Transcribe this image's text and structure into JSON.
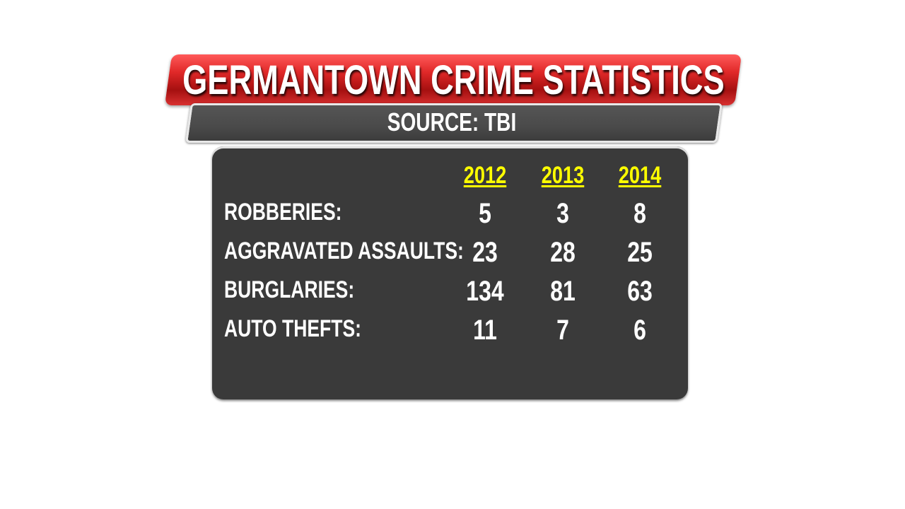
{
  "chart_data": {
    "type": "table",
    "title": "GERMANTOWN CRIME STATISTICS",
    "subtitle": "SOURCE: TBI",
    "columns": [
      "2012",
      "2013",
      "2014"
    ],
    "rows": [
      {
        "label": "ROBBERIES:",
        "values": [
          5,
          3,
          8
        ]
      },
      {
        "label": "AGGRAVATED ASSAULTS:",
        "values": [
          23,
          28,
          25
        ]
      },
      {
        "label": "BURGLARIES:",
        "values": [
          134,
          81,
          63
        ]
      },
      {
        "label": "AUTO THEFTS:",
        "values": [
          11,
          7,
          6
        ]
      }
    ],
    "colors": {
      "title_banner": "#e02828",
      "panel": "#3a3a3a",
      "year_header": "#ffff00",
      "text": "#ffffff"
    }
  }
}
